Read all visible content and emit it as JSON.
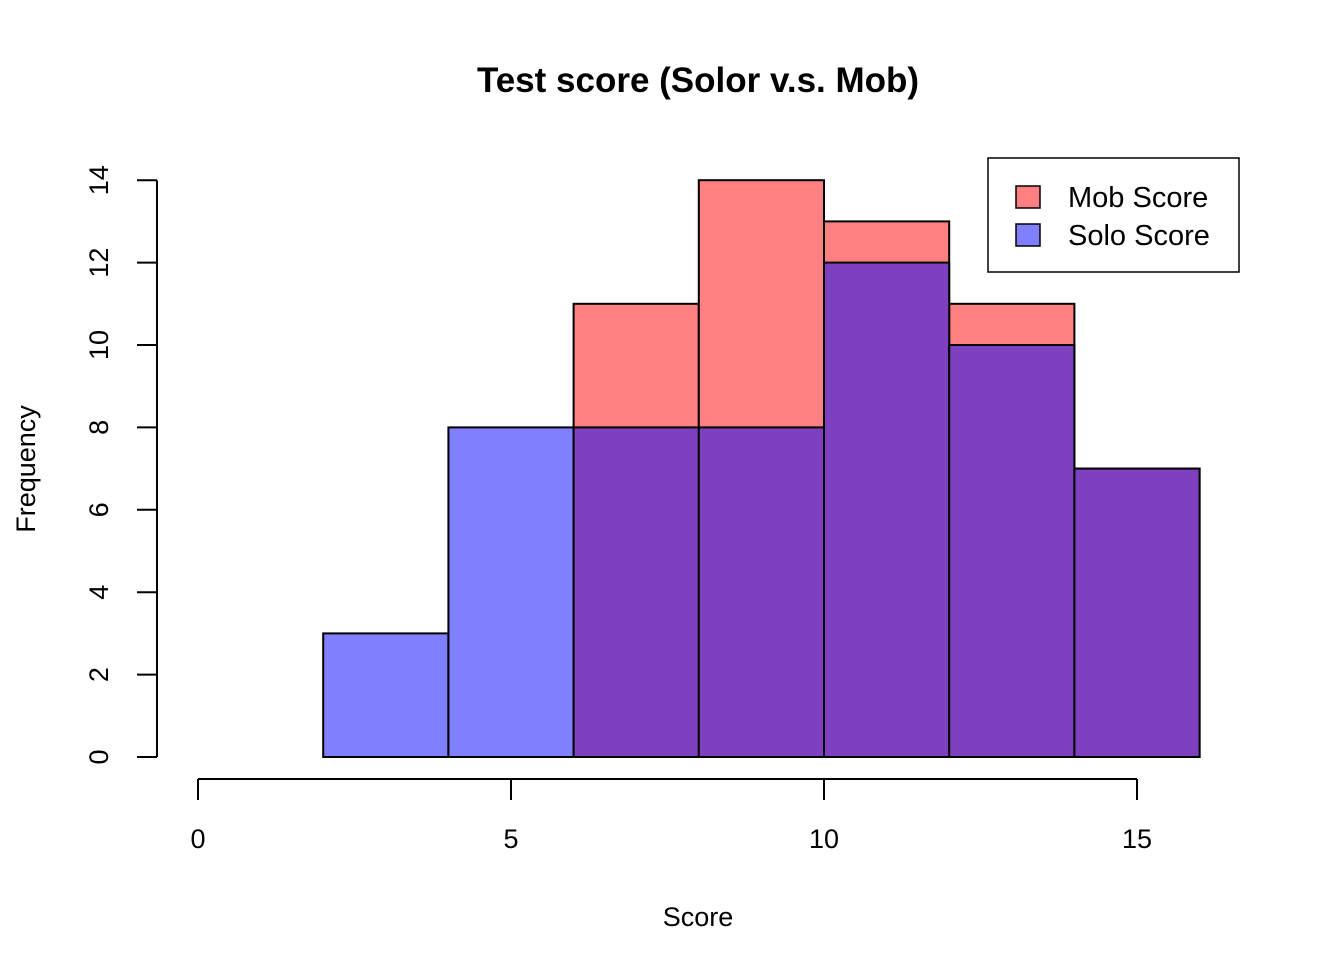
{
  "chart_data": {
    "type": "histogram",
    "title": "Test score (Solor v.s. Mob)",
    "xlabel": "Score",
    "ylabel": "Frequency",
    "xlim": [
      0,
      16
    ],
    "ylim": [
      0,
      14
    ],
    "x_ticks": [
      0,
      5,
      10,
      15
    ],
    "y_ticks": [
      0,
      2,
      4,
      6,
      8,
      10,
      12,
      14
    ],
    "bin_edges": [
      2,
      4,
      6,
      8,
      10,
      12,
      14,
      16
    ],
    "series": [
      {
        "name": "Mob Score",
        "color": "#FF8080",
        "bins": [
          {
            "from": 6,
            "to": 8,
            "count": 11
          },
          {
            "from": 8,
            "to": 10,
            "count": 14
          },
          {
            "from": 10,
            "to": 12,
            "count": 13
          },
          {
            "from": 12,
            "to": 14,
            "count": 11
          },
          {
            "from": 14,
            "to": 16,
            "count": 7
          }
        ]
      },
      {
        "name": "Solo Score",
        "color": "#8080FF",
        "bins": [
          {
            "from": 2,
            "to": 4,
            "count": 3
          },
          {
            "from": 4,
            "to": 6,
            "count": 8
          },
          {
            "from": 6,
            "to": 8,
            "count": 8
          },
          {
            "from": 8,
            "to": 10,
            "count": 8
          },
          {
            "from": 10,
            "to": 12,
            "count": 12
          },
          {
            "from": 12,
            "to": 14,
            "count": 10
          },
          {
            "from": 14,
            "to": 16,
            "count": 7
          }
        ]
      }
    ],
    "overlap_color": "#7F40C0",
    "legend": {
      "position": "top-right",
      "entries": [
        {
          "label": "Mob Score",
          "color": "#FF8080"
        },
        {
          "label": "Solo Score",
          "color": "#8080FF"
        }
      ]
    }
  }
}
